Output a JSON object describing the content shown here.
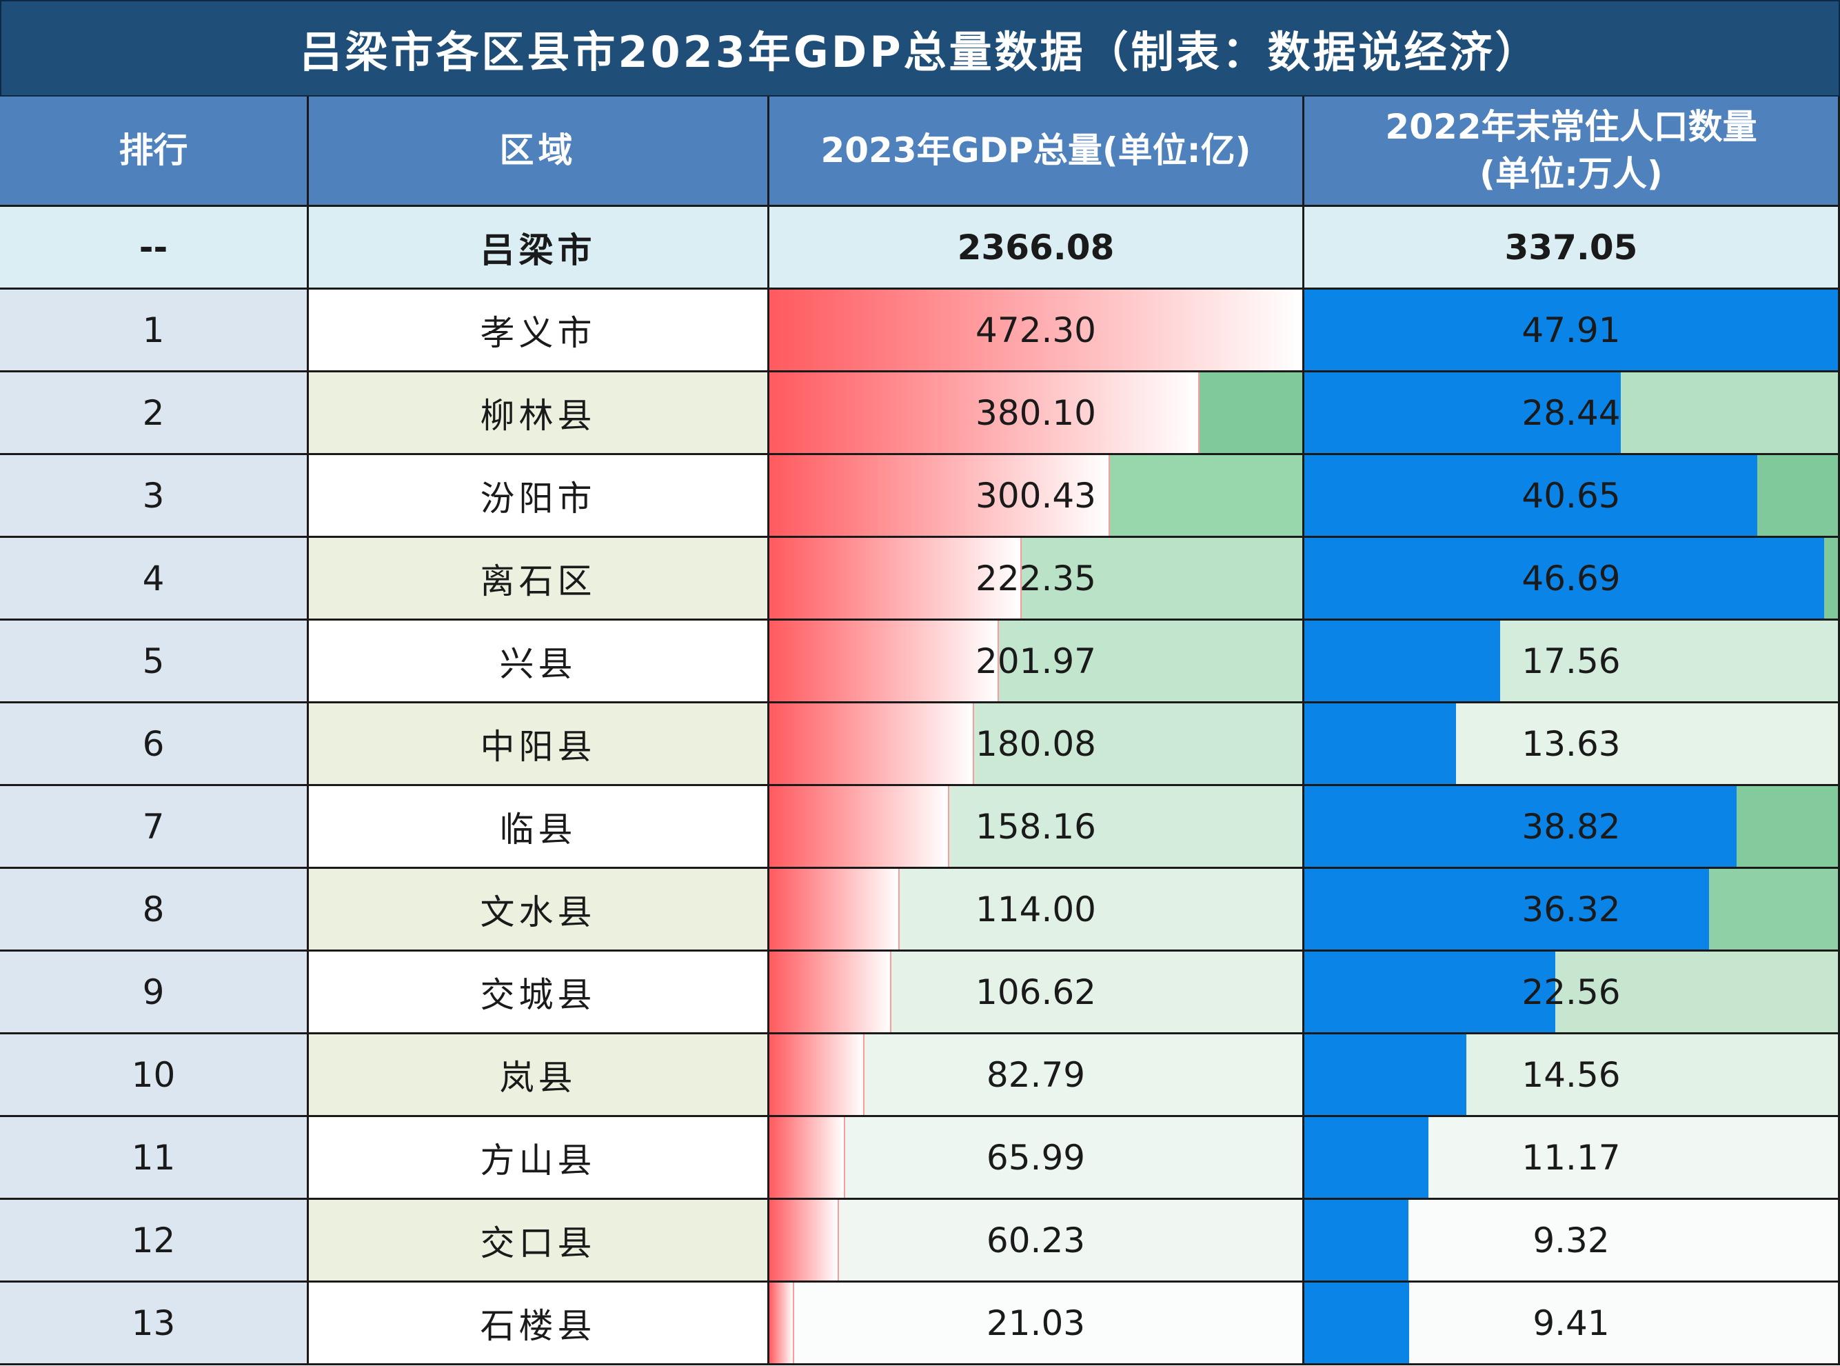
{
  "title": "吕梁市各区县市2023年GDP总量数据（制表：数据说经济）",
  "headers": {
    "rank": "排行",
    "region": "区域",
    "gdp": "2023年GDP总量(单位:亿)",
    "pop_line1": "2022年末常住人口数量",
    "pop_line2": "(单位:万人)"
  },
  "total": {
    "rank": "--",
    "region": "吕梁市",
    "gdp": "2366.08",
    "pop": "337.05"
  },
  "colors": {
    "gdp_bar": "#ff5a5f",
    "pop_bar": "#0a84e6",
    "name_odd": "#ffffff",
    "name_even": "#ebf1de"
  },
  "rows": [
    {
      "rank": "1",
      "region": "孝义市",
      "gdp": "472.30",
      "pop": "47.91",
      "gdp_bg": "#ffffff",
      "pop_bg": "#ffffff"
    },
    {
      "rank": "2",
      "region": "柳林县",
      "gdp": "380.10",
      "pop": "28.44",
      "gdp_bg": "#7fc99a",
      "pop_bg": "#b6e0c4"
    },
    {
      "rank": "3",
      "region": "汾阳市",
      "gdp": "300.43",
      "pop": "40.65",
      "gdp_bg": "#98d6ab",
      "pop_bg": "#7fc99a"
    },
    {
      "rank": "4",
      "region": "离石区",
      "gdp": "222.35",
      "pop": "46.69",
      "gdp_bg": "#b9e2c6",
      "pop_bg": "#7fc99a"
    },
    {
      "rank": "5",
      "region": "兴县",
      "gdp": "201.97",
      "pop": "17.56",
      "gdp_bg": "#c2e5cd",
      "pop_bg": "#d3ecdb"
    },
    {
      "rank": "6",
      "region": "中阳县",
      "gdp": "180.08",
      "pop": "13.63",
      "gdp_bg": "#cbe9d4",
      "pop_bg": "#e5f3e9"
    },
    {
      "rank": "7",
      "region": "临县",
      "gdp": "158.16",
      "pop": "38.82",
      "gdp_bg": "#d4ecdc",
      "pop_bg": "#83ca9d"
    },
    {
      "rank": "8",
      "region": "文水县",
      "gdp": "114.00",
      "pop": "36.32",
      "gdp_bg": "#e2f1e6",
      "pop_bg": "#8fd0a6"
    },
    {
      "rank": "9",
      "region": "交城县",
      "gdp": "106.62",
      "pop": "22.56",
      "gdp_bg": "#e4f2e8",
      "pop_bg": "#c6e6d0"
    },
    {
      "rank": "10",
      "region": "岚县",
      "gdp": "82.79",
      "pop": "14.56",
      "gdp_bg": "#eaf5ee",
      "pop_bg": "#e2f2e7"
    },
    {
      "rank": "11",
      "region": "方山县",
      "gdp": "65.99",
      "pop": "11.17",
      "gdp_bg": "#eef6f1",
      "pop_bg": "#f1f8f3"
    },
    {
      "rank": "12",
      "region": "交口县",
      "gdp": "60.23",
      "pop": "9.32",
      "gdp_bg": "#f0f7f2",
      "pop_bg": "#fafcfb"
    },
    {
      "rank": "13",
      "region": "石楼县",
      "gdp": "21.03",
      "pop": "9.41",
      "gdp_bg": "#fbfdfc",
      "pop_bg": "#fafcfb"
    }
  ]
}
